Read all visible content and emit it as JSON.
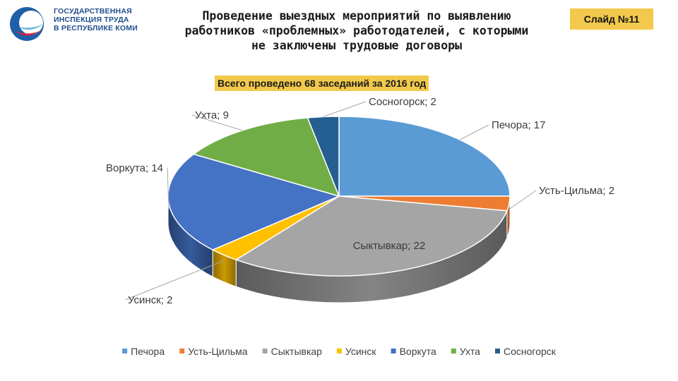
{
  "logo": {
    "lines": [
      "ГОСУДАРСТВЕННАЯ",
      "ИНСПЕКЦИЯ ТРУДА",
      "В РЕСПУБЛИКЕ КОМИ"
    ]
  },
  "header": {
    "title": "Проведение выездных мероприятий по выявлению работников «проблемных» работодателей, с которыми не заключены трудовые договоры",
    "slide_label": "Слайд №11"
  },
  "chart_data": {
    "type": "pie",
    "title": "Всего проведено 68 заседаний за 2016 год",
    "categories": [
      "Печора",
      "Усть-Цильма",
      "Сыктывкар",
      "Усинск",
      "Воркута",
      "Ухта",
      "Сосногорск"
    ],
    "values": [
      17,
      2,
      22,
      2,
      14,
      9,
      2
    ],
    "data_labels": [
      "Печора; 17",
      "Усть-Цильма; 2",
      "Сыктывкар; 22",
      "Усинск; 2",
      "Воркута; 14",
      "Ухта; 9",
      "Сосногорск; 2"
    ],
    "colors": [
      "#5b9bd5",
      "#ed7d31",
      "#a5a5a5",
      "#ffc000",
      "#4472c4",
      "#70ad47",
      "#255e91"
    ],
    "legend_position": "bottom",
    "style": "3d"
  }
}
